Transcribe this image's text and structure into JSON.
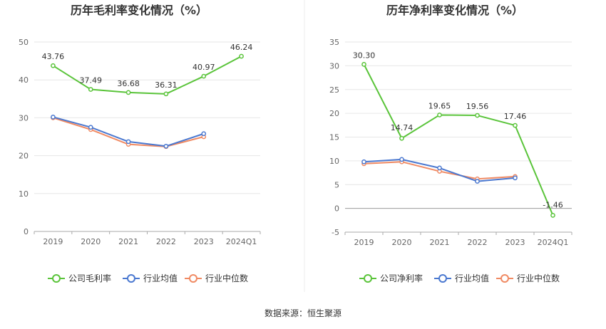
{
  "source_label": "数据来源：恒生聚源",
  "chart_data": [
    {
      "type": "line",
      "title": "历年毛利率变化情况（%）",
      "categories": [
        "2019",
        "2020",
        "2021",
        "2022",
        "2023",
        "2024Q1"
      ],
      "ylim": [
        0,
        50
      ],
      "yticks": [
        0,
        10,
        20,
        30,
        40,
        50
      ],
      "grid": true,
      "legend_position": "bottom",
      "series": [
        {
          "name": "公司毛利率",
          "color": "#5ac43a",
          "values": [
            43.76,
            37.49,
            36.68,
            36.31,
            40.97,
            46.24
          ],
          "labels": [
            "43.76",
            "37.49",
            "36.68",
            "36.31",
            "40.97",
            "46.24"
          ]
        },
        {
          "name": "行业均值",
          "color": "#4a78d0",
          "values": [
            30.2,
            27.5,
            23.7,
            22.5,
            25.8,
            null
          ]
        },
        {
          "name": "行业中位数",
          "color": "#f08a63",
          "values": [
            30.0,
            26.9,
            23.0,
            22.4,
            25.0,
            null
          ]
        }
      ]
    },
    {
      "type": "line",
      "title": "历年净利率变化情况（%）",
      "categories": [
        "2019",
        "2020",
        "2021",
        "2022",
        "2023",
        "2024Q1"
      ],
      "ylim": [
        -5,
        35
      ],
      "yticks": [
        -5,
        0,
        5,
        10,
        15,
        20,
        25,
        30,
        35
      ],
      "grid": true,
      "legend_position": "bottom",
      "series": [
        {
          "name": "公司净利率",
          "color": "#5ac43a",
          "values": [
            30.3,
            14.74,
            19.65,
            19.56,
            17.46,
            -1.46
          ],
          "labels": [
            "30.30",
            "14.74",
            "19.65",
            "19.56",
            "17.46",
            "-1.46"
          ]
        },
        {
          "name": "行业均值",
          "color": "#4a78d0",
          "values": [
            9.8,
            10.3,
            8.5,
            5.7,
            6.4,
            null
          ]
        },
        {
          "name": "行业中位数",
          "color": "#f08a63",
          "values": [
            9.4,
            9.8,
            7.8,
            6.2,
            6.7,
            null
          ]
        }
      ]
    }
  ]
}
